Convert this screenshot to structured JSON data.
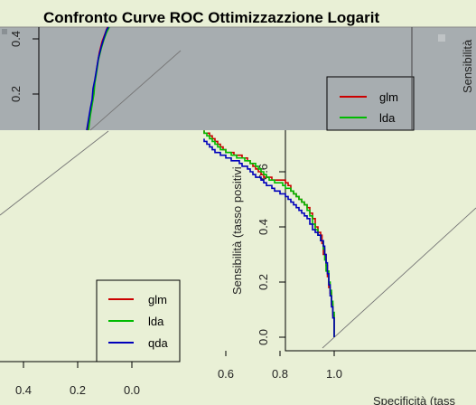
{
  "window": {
    "title": "Confronto Curve ROC Ottimizzazzione Logarit"
  },
  "top_panel": {
    "y_tick_labels": [
      "0.4",
      "0.2"
    ],
    "legend": [
      "glm",
      "lda"
    ],
    "right_ylabel": "Sensibilità"
  },
  "left_panel": {
    "x_tick_labels": [
      "0.4",
      "0.2",
      "0.0"
    ],
    "legend": [
      "glm",
      "lda",
      "qda"
    ]
  },
  "chart_data": {
    "type": "line",
    "title": "Confronto Curve ROC Ottimizzazzione Logarit",
    "xlabel": "Specificità (tass",
    "ylabel": "Sensibilità (tasso positivi",
    "x_reversed": true,
    "xlim": [
      1.0,
      0.5
    ],
    "ylim": [
      0.0,
      0.7
    ],
    "x_tick_labels": [
      "1.0",
      "0.8",
      "0.6"
    ],
    "y_tick_labels": [
      "0.0",
      "0.2",
      "0.4",
      "0.6"
    ],
    "diagonal": true,
    "legend_position": "top-right",
    "series": [
      {
        "name": "glm",
        "color": "#cc0000",
        "x": [
          1.0,
          1.0,
          0.995,
          0.99,
          0.985,
          0.98,
          0.975,
          0.97,
          0.96,
          0.955,
          0.95,
          0.94,
          0.93,
          0.92,
          0.91,
          0.9,
          0.89,
          0.88,
          0.87,
          0.86,
          0.85,
          0.84,
          0.83,
          0.82,
          0.8,
          0.78,
          0.77,
          0.76,
          0.74,
          0.73,
          0.72,
          0.71,
          0.7,
          0.69,
          0.68,
          0.66,
          0.64,
          0.63,
          0.62,
          0.6,
          0.59,
          0.58,
          0.57,
          0.56,
          0.55,
          0.54,
          0.53,
          0.52
        ],
        "y": [
          0.0,
          0.08,
          0.12,
          0.16,
          0.18,
          0.22,
          0.26,
          0.3,
          0.34,
          0.37,
          0.38,
          0.4,
          0.43,
          0.45,
          0.47,
          0.48,
          0.49,
          0.5,
          0.51,
          0.52,
          0.53,
          0.55,
          0.56,
          0.57,
          0.57,
          0.57,
          0.58,
          0.58,
          0.59,
          0.6,
          0.61,
          0.62,
          0.63,
          0.64,
          0.65,
          0.66,
          0.66,
          0.67,
          0.67,
          0.68,
          0.69,
          0.7,
          0.71,
          0.72,
          0.73,
          0.74,
          0.74,
          0.75
        ]
      },
      {
        "name": "lda",
        "color": "#00bb00",
        "x": [
          1.0,
          1.0,
          0.995,
          0.99,
          0.985,
          0.98,
          0.97,
          0.965,
          0.96,
          0.95,
          0.94,
          0.93,
          0.92,
          0.91,
          0.9,
          0.89,
          0.88,
          0.87,
          0.86,
          0.85,
          0.84,
          0.83,
          0.82,
          0.81,
          0.8,
          0.79,
          0.78,
          0.77,
          0.76,
          0.75,
          0.74,
          0.73,
          0.72,
          0.71,
          0.7,
          0.69,
          0.68,
          0.67,
          0.66,
          0.64,
          0.62,
          0.6,
          0.58,
          0.57,
          0.56,
          0.55,
          0.54,
          0.53,
          0.52
        ],
        "y": [
          0.0,
          0.09,
          0.13,
          0.17,
          0.2,
          0.24,
          0.28,
          0.32,
          0.35,
          0.37,
          0.39,
          0.41,
          0.44,
          0.46,
          0.48,
          0.49,
          0.5,
          0.51,
          0.52,
          0.53,
          0.54,
          0.54,
          0.55,
          0.56,
          0.56,
          0.56,
          0.57,
          0.57,
          0.58,
          0.59,
          0.6,
          0.61,
          0.62,
          0.63,
          0.63,
          0.64,
          0.64,
          0.65,
          0.65,
          0.66,
          0.67,
          0.68,
          0.69,
          0.7,
          0.71,
          0.72,
          0.73,
          0.74,
          0.75
        ]
      },
      {
        "name": "qda",
        "color": "#0000bb",
        "x": [
          1.0,
          1.0,
          0.995,
          0.99,
          0.985,
          0.98,
          0.975,
          0.97,
          0.965,
          0.96,
          0.95,
          0.94,
          0.93,
          0.92,
          0.91,
          0.9,
          0.89,
          0.88,
          0.87,
          0.86,
          0.85,
          0.84,
          0.83,
          0.82,
          0.81,
          0.8,
          0.79,
          0.78,
          0.77,
          0.76,
          0.75,
          0.74,
          0.73,
          0.72,
          0.71,
          0.7,
          0.69,
          0.68,
          0.67,
          0.66,
          0.65,
          0.64,
          0.62,
          0.6,
          0.58,
          0.56,
          0.55,
          0.54,
          0.53,
          0.52
        ],
        "y": [
          0.0,
          0.07,
          0.11,
          0.15,
          0.19,
          0.23,
          0.27,
          0.3,
          0.33,
          0.35,
          0.37,
          0.38,
          0.39,
          0.41,
          0.43,
          0.44,
          0.45,
          0.46,
          0.47,
          0.48,
          0.49,
          0.5,
          0.51,
          0.52,
          0.52,
          0.53,
          0.53,
          0.54,
          0.55,
          0.55,
          0.56,
          0.57,
          0.58,
          0.58,
          0.59,
          0.6,
          0.61,
          0.62,
          0.62,
          0.63,
          0.64,
          0.64,
          0.65,
          0.66,
          0.67,
          0.68,
          0.69,
          0.7,
          0.71,
          0.72
        ]
      }
    ]
  }
}
